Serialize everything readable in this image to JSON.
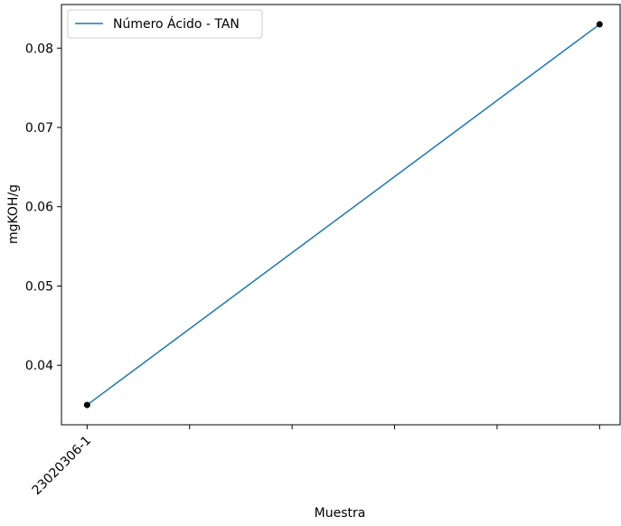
{
  "chart_data": {
    "type": "line",
    "title": "",
    "xlabel": "Muestra",
    "ylabel": "mgKOH/g",
    "categories": [
      "23020306-1",
      "",
      "",
      "",
      "",
      ""
    ],
    "x_tick_labels": [
      "23020306-1",
      "",
      "",
      "",
      "",
      ""
    ],
    "y_ticks": [
      0.04,
      0.05,
      0.06,
      0.07,
      0.08
    ],
    "y_tick_labels": [
      "0.04",
      "0.05",
      "0.06",
      "0.07",
      "0.08"
    ],
    "ylim": [
      0.0325,
      0.0855
    ],
    "xlim": [
      -0.25,
      5.2
    ],
    "grid": false,
    "legend_position": "upper-left",
    "series": [
      {
        "name": "Número Ácido - TAN",
        "color": "#1f77b4",
        "points": [
          {
            "x": 0,
            "y": 0.035
          },
          {
            "x": 5,
            "y": 0.083
          }
        ]
      }
    ],
    "markers": {
      "color": "#000000",
      "points": [
        {
          "x": 0,
          "y": 0.035
        },
        {
          "x": 5,
          "y": 0.083
        }
      ]
    }
  }
}
